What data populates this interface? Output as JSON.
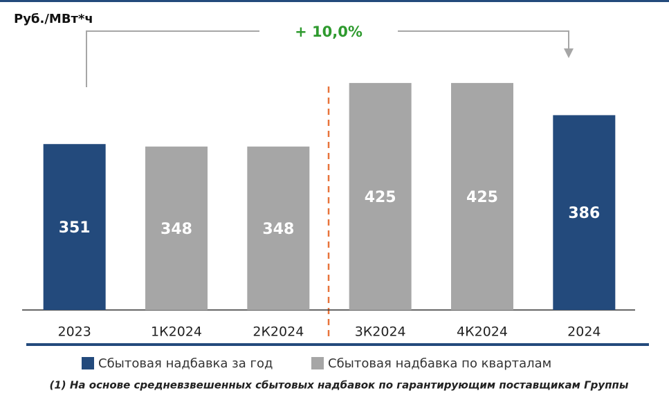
{
  "chart_data": {
    "type": "bar",
    "unit_label": "Руб./МВт*ч",
    "annotation": "+ 10,0%",
    "footnote": "(1) На основе средневзвешенных сбытовых надбавок по гарантирующим поставщикам Группы",
    "categories": [
      "2023",
      "1К2024",
      "2К2024",
      "3К2024",
      "4К2024",
      "2024"
    ],
    "series": [
      {
        "name": "Сбытовая надбавка за год",
        "color": "#234a7c",
        "values": [
          351,
          null,
          null,
          null,
          null,
          386
        ]
      },
      {
        "name": "Сбытовая надбавка  по кварталам",
        "color": "#a6a6a6",
        "values": [
          null,
          348,
          348,
          425,
          425,
          null
        ]
      }
    ],
    "ylim": [
      150,
      435
    ]
  }
}
